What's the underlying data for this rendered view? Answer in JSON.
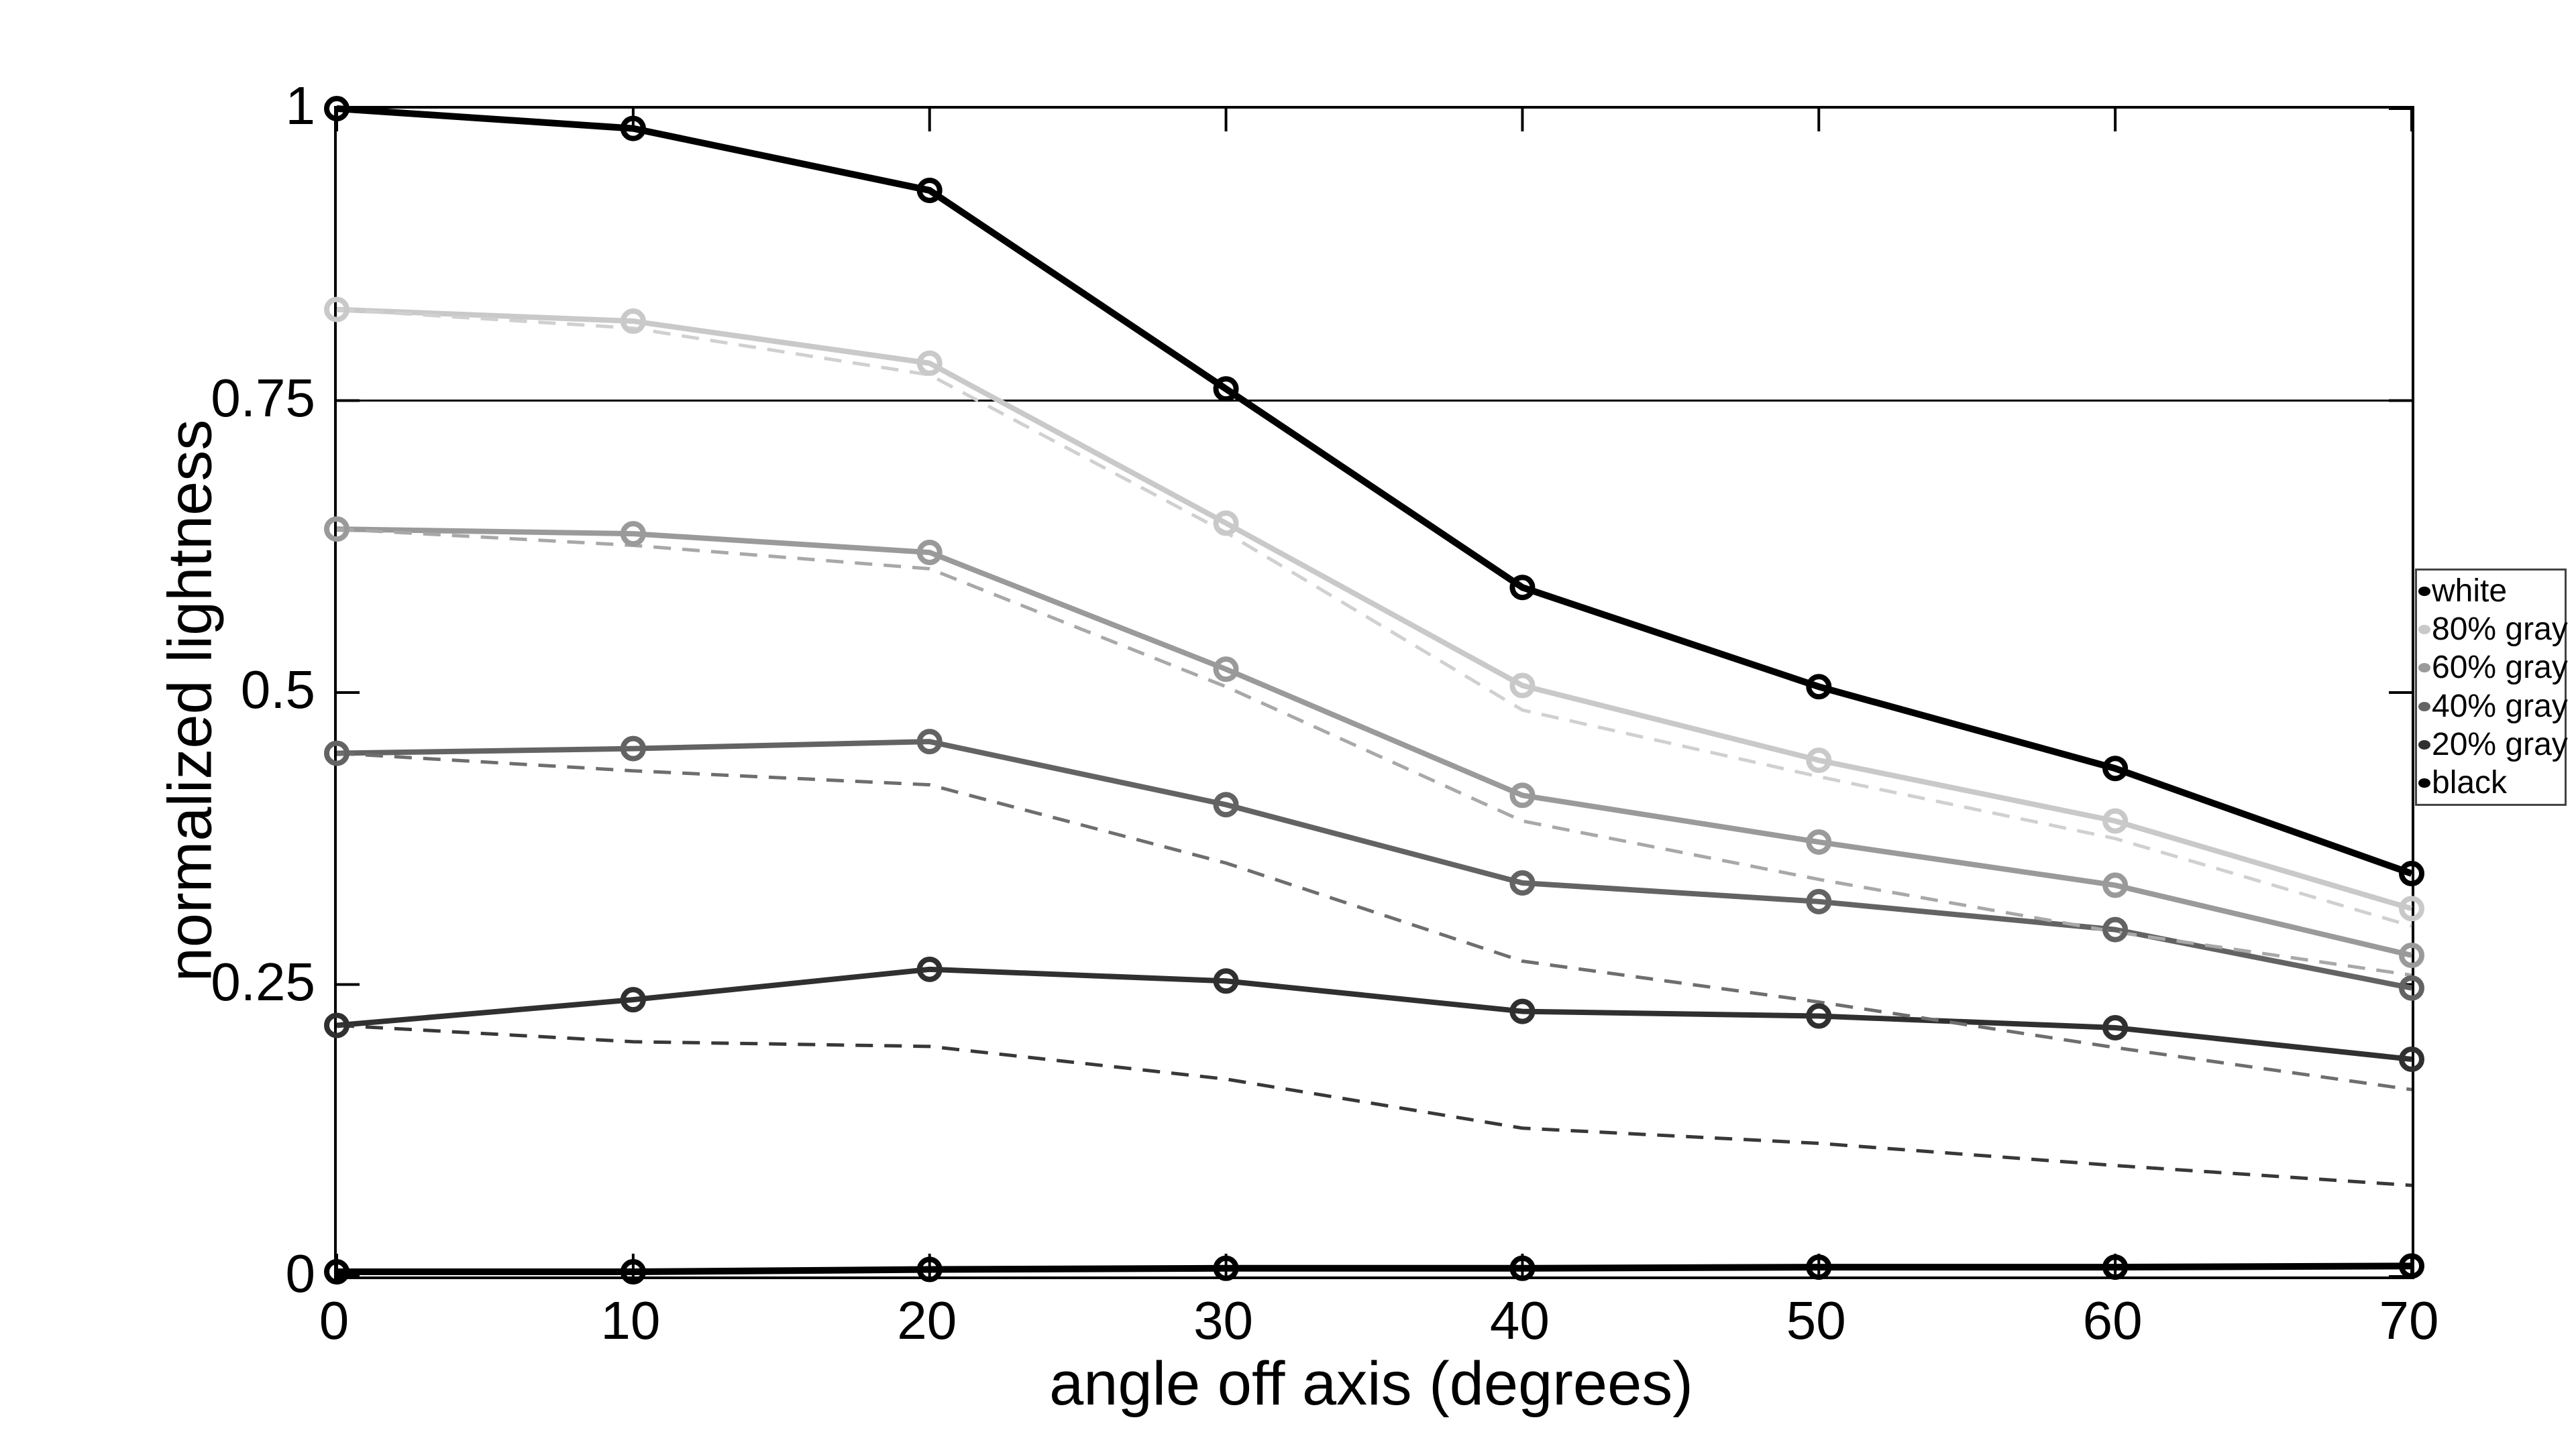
{
  "figure": {
    "background": "#ffffff"
  },
  "chart_data": {
    "type": "line",
    "title": "",
    "xlabel": "angle off axis (degrees)",
    "ylabel": "normalized lightness",
    "xlim": [
      0,
      70
    ],
    "ylim": [
      0,
      1
    ],
    "x_ticks": [
      0,
      10,
      20,
      30,
      40,
      50,
      60,
      70
    ],
    "x_tick_labels": [
      "0",
      "10",
      "20",
      "30",
      "40",
      "50",
      "60",
      "70"
    ],
    "y_ticks": [
      1,
      0.75,
      0.5,
      0.25,
      0
    ],
    "y_tick_labels": [
      "1",
      "0.75",
      "0.5",
      "0.25",
      "0"
    ],
    "grid": "off",
    "reference_line_y": 0.75,
    "x": [
      0,
      10,
      20,
      30,
      40,
      50,
      60,
      70
    ],
    "series": [
      {
        "name": "white",
        "style": "solid",
        "marker": "circle",
        "color": "#000000",
        "values": [
          1.0,
          0.983,
          0.93,
          0.76,
          0.59,
          0.505,
          0.435,
          0.345
        ]
      },
      {
        "name": "80% gray",
        "style": "solid",
        "marker": "circle",
        "color": "#c9c9c9",
        "values": [
          0.828,
          0.818,
          0.782,
          0.645,
          0.506,
          0.442,
          0.39,
          0.315
        ]
      },
      {
        "name": "60% gray",
        "style": "solid",
        "marker": "circle",
        "color": "#9a9a9a",
        "values": [
          0.64,
          0.636,
          0.62,
          0.52,
          0.412,
          0.372,
          0.335,
          0.275
        ]
      },
      {
        "name": "40% gray",
        "style": "solid",
        "marker": "circle",
        "color": "#636363",
        "values": [
          0.448,
          0.452,
          0.458,
          0.404,
          0.337,
          0.321,
          0.297,
          0.247
        ]
      },
      {
        "name": "20% gray",
        "style": "solid",
        "marker": "circle",
        "color": "#303030",
        "values": [
          0.215,
          0.237,
          0.263,
          0.253,
          0.227,
          0.223,
          0.213,
          0.186
        ]
      },
      {
        "name": "black",
        "style": "solid",
        "marker": "circle",
        "color": "#000000",
        "values": [
          0.004,
          0.004,
          0.006,
          0.007,
          0.007,
          0.008,
          0.008,
          0.009
        ]
      }
    ],
    "dashed_series": [
      {
        "name": "80% gray (dashed)",
        "color": "#d0d0d0",
        "values": [
          0.828,
          0.812,
          0.772,
          0.637,
          0.485,
          0.428,
          0.375,
          0.3
        ]
      },
      {
        "name": "60% gray (dashed)",
        "color": "#a8a8a8",
        "values": [
          0.64,
          0.626,
          0.606,
          0.505,
          0.39,
          0.34,
          0.295,
          0.258
        ]
      },
      {
        "name": "40% gray (dashed)",
        "color": "#6e6e6e",
        "values": [
          0.448,
          0.433,
          0.421,
          0.354,
          0.27,
          0.235,
          0.196,
          0.16
        ]
      },
      {
        "name": "20% gray (dashed)",
        "color": "#383838",
        "values": [
          0.215,
          0.201,
          0.197,
          0.169,
          0.127,
          0.114,
          0.095,
          0.078
        ]
      }
    ],
    "legend": {
      "position": "right",
      "entries": [
        {
          "label": "white",
          "color": "#000000"
        },
        {
          "label": "80% gray",
          "color": "#c9c9c9"
        },
        {
          "label": "60% gray",
          "color": "#9a9a9a"
        },
        {
          "label": "40% gray",
          "color": "#636363"
        },
        {
          "label": "20% gray",
          "color": "#303030"
        },
        {
          "label": "black",
          "color": "#000000"
        }
      ]
    }
  }
}
